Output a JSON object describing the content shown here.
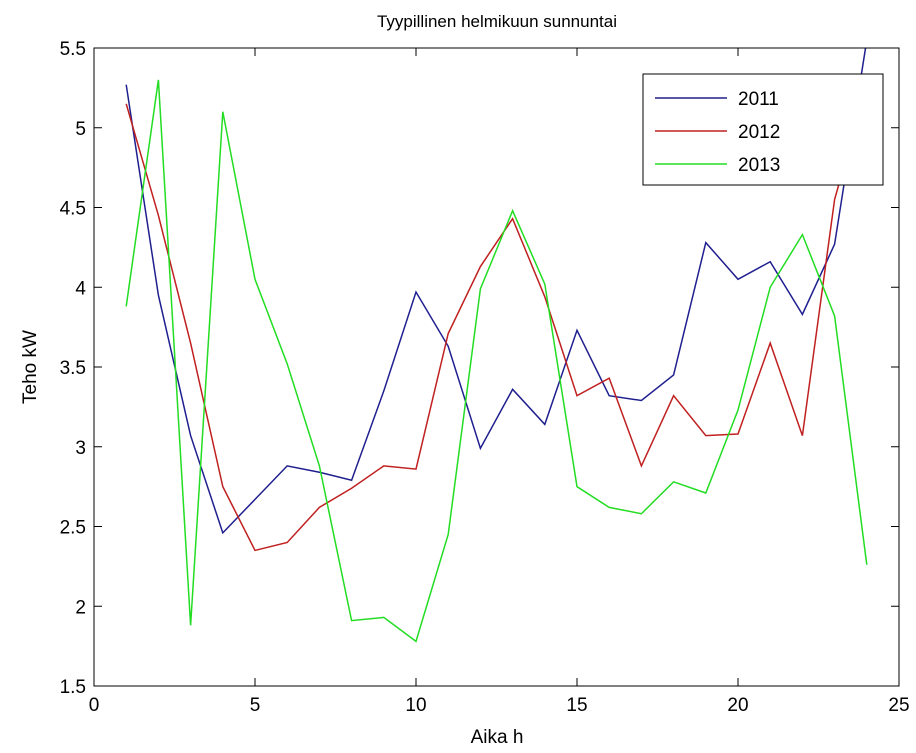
{
  "chart_data": {
    "type": "line",
    "title": "Tyypillinen helmikuun sunnuntai",
    "xlabel": "Aika h",
    "ylabel": "Teho kW",
    "xlim": [
      0,
      25
    ],
    "ylim": [
      1.5,
      5.5
    ],
    "xticks": [
      0,
      5,
      10,
      15,
      20,
      25
    ],
    "yticks": [
      1.5,
      2,
      2.5,
      3,
      3.5,
      4,
      4.5,
      5,
      5.5
    ],
    "grid": false,
    "legend_position": "top-right",
    "x": [
      1,
      2,
      3,
      4,
      5,
      6,
      7,
      8,
      9,
      10,
      11,
      12,
      13,
      14,
      15,
      16,
      17,
      18,
      19,
      20,
      21,
      22,
      23,
      24
    ],
    "series": [
      {
        "name": "2011",
        "color": "#1f1f8f",
        "values": [
          5.27,
          3.95,
          3.07,
          2.46,
          2.67,
          2.88,
          2.84,
          2.79,
          3.35,
          3.97,
          3.63,
          2.99,
          3.36,
          3.14,
          3.73,
          3.32,
          3.29,
          3.45,
          4.28,
          4.05,
          4.16,
          3.83,
          4.27,
          5.55
        ]
      },
      {
        "name": "2012",
        "color": "#c02020",
        "values": [
          5.15,
          4.45,
          3.65,
          2.75,
          2.35,
          2.4,
          2.62,
          2.74,
          2.88,
          2.86,
          3.71,
          4.13,
          4.43,
          3.94,
          3.32,
          3.43,
          2.88,
          3.32,
          3.07,
          3.08,
          3.65,
          3.07,
          4.55,
          5.27
        ]
      },
      {
        "name": "2013",
        "color": "#22dd22",
        "values": [
          3.88,
          5.3,
          1.88,
          5.1,
          4.05,
          3.52,
          2.88,
          1.91,
          1.93,
          1.78,
          2.45,
          3.99,
          4.48,
          4.02,
          2.75,
          2.62,
          2.58,
          2.78,
          2.71,
          3.23,
          4.0,
          4.33,
          3.82,
          2.26
        ]
      }
    ]
  }
}
